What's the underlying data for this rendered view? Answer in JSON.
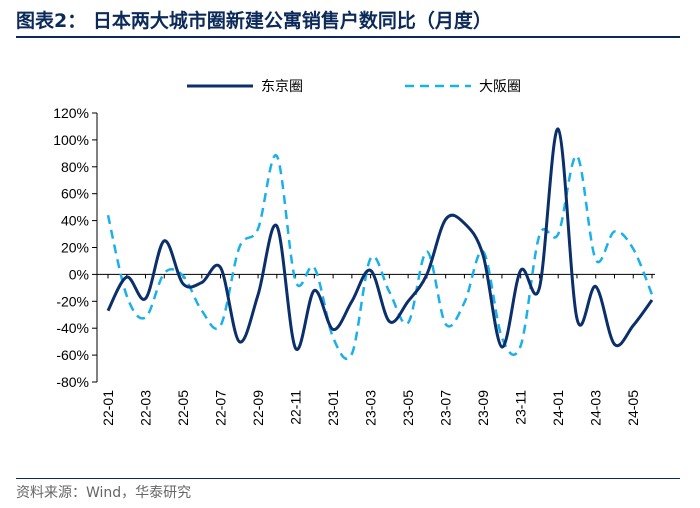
{
  "header": {
    "title": "图表2：  日本两大城市圈新建公寓销售户数同比（月度）"
  },
  "footer": {
    "source": "资料来源：Wind，华泰研究"
  },
  "colors": {
    "tokyo": "#0b2f6b",
    "osaka": "#1ab0e8",
    "axis": "#000000",
    "title": "#0b2a5a"
  },
  "chart_data": {
    "type": "line",
    "ylim": [
      -0.8,
      1.2
    ],
    "y_ticks": [
      "120%",
      "100%",
      "80%",
      "60%",
      "40%",
      "20%",
      "0%",
      "-20%",
      "-40%",
      "-60%",
      "-80%"
    ],
    "x_tick_labels": [
      "22-01",
      "22-03",
      "22-05",
      "22-07",
      "22-09",
      "22-11",
      "23-01",
      "23-03",
      "23-05",
      "23-07",
      "23-09",
      "23-11",
      "24-01",
      "24-03",
      "24-05"
    ],
    "x": [
      "22-01",
      "22-02",
      "22-03",
      "22-04",
      "22-05",
      "22-06",
      "22-07",
      "22-08",
      "22-09",
      "22-10",
      "22-11",
      "22-12",
      "23-01",
      "23-02",
      "23-03",
      "23-04",
      "23-05",
      "23-06",
      "23-07",
      "23-08",
      "23-09",
      "23-10",
      "23-11",
      "23-12",
      "24-01",
      "24-02",
      "24-03",
      "24-04",
      "24-05",
      "24-06"
    ],
    "series": [
      {
        "name": "东京圈",
        "style": "solid",
        "values": [
          -0.27,
          -0.02,
          -0.18,
          0.25,
          -0.07,
          -0.06,
          0.05,
          -0.5,
          -0.15,
          0.36,
          -0.55,
          -0.12,
          -0.41,
          -0.2,
          0.03,
          -0.35,
          -0.2,
          0.0,
          0.41,
          0.38,
          0.14,
          -0.54,
          0.03,
          -0.1,
          1.08,
          -0.33,
          -0.09,
          -0.52,
          -0.38,
          -0.19
        ]
      },
      {
        "name": "大阪圈",
        "style": "dashed",
        "values": [
          0.44,
          -0.16,
          -0.32,
          0.01,
          -0.01,
          -0.27,
          -0.38,
          0.2,
          0.34,
          0.88,
          -0.05,
          0.05,
          -0.47,
          -0.59,
          0.12,
          -0.13,
          -0.36,
          0.17,
          -0.37,
          -0.21,
          0.17,
          -0.47,
          -0.53,
          0.29,
          0.3,
          0.88,
          0.11,
          0.32,
          0.19,
          -0.15
        ]
      }
    ]
  }
}
